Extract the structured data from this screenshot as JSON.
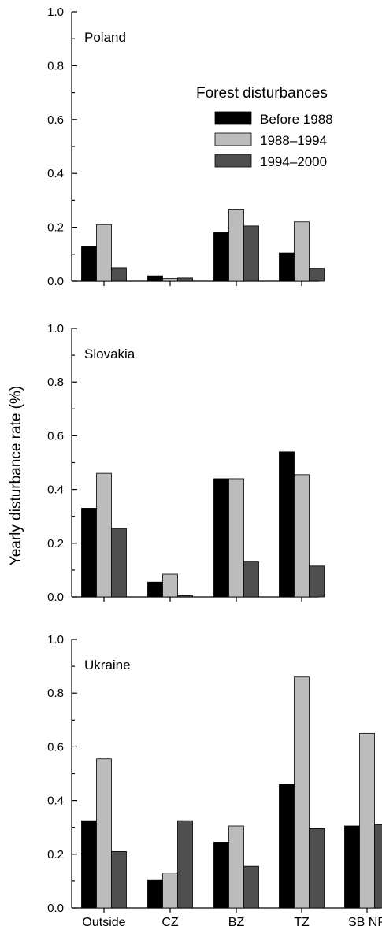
{
  "chart_data": {
    "type": "bar",
    "ylabel": "Yearly disturbance rate (%)",
    "ylim": [
      0,
      1.0
    ],
    "yticks": [
      "0.0",
      "0.2",
      "0.4",
      "0.6",
      "0.8",
      "1.0"
    ],
    "categories": [
      "Outside",
      "CZ",
      "BZ",
      "TZ",
      "SB NP"
    ],
    "legend": {
      "title": "Forest disturbances",
      "placement": "top-right of first panel",
      "entries": [
        {
          "name": "Before 1988",
          "color": "#000000"
        },
        {
          "name": "1988–1994",
          "color": "#bcbcbc"
        },
        {
          "name": "1994–2000",
          "color": "#4f4f4f"
        }
      ]
    },
    "panels": [
      {
        "title": "Poland",
        "categories": [
          "Outside",
          "CZ",
          "BZ",
          "TZ"
        ],
        "series": [
          {
            "name": "Before 1988",
            "values": [
              0.13,
              0.02,
              0.18,
              0.105
            ]
          },
          {
            "name": "1988–1994",
            "values": [
              0.21,
              0.01,
              0.265,
              0.22
            ]
          },
          {
            "name": "1994–2000",
            "values": [
              0.05,
              0.012,
              0.205,
              0.048
            ]
          }
        ]
      },
      {
        "title": "Slovakia",
        "categories": [
          "Outside",
          "CZ",
          "BZ",
          "TZ"
        ],
        "series": [
          {
            "name": "Before 1988",
            "values": [
              0.33,
              0.055,
              0.44,
              0.54
            ]
          },
          {
            "name": "1988–1994",
            "values": [
              0.46,
              0.085,
              0.44,
              0.455
            ]
          },
          {
            "name": "1994–2000",
            "values": [
              0.255,
              0.005,
              0.13,
              0.115
            ]
          }
        ]
      },
      {
        "title": "Ukraine",
        "categories": [
          "Outside",
          "CZ",
          "BZ",
          "TZ",
          "SB NP"
        ],
        "series": [
          {
            "name": "Before 1988",
            "values": [
              0.325,
              0.105,
              0.245,
              0.46,
              0.305
            ]
          },
          {
            "name": "1988–1994",
            "values": [
              0.555,
              0.13,
              0.305,
              0.86,
              0.65
            ]
          },
          {
            "name": "1994–2000",
            "values": [
              0.21,
              0.325,
              0.155,
              0.295,
              0.31
            ]
          }
        ]
      }
    ]
  }
}
